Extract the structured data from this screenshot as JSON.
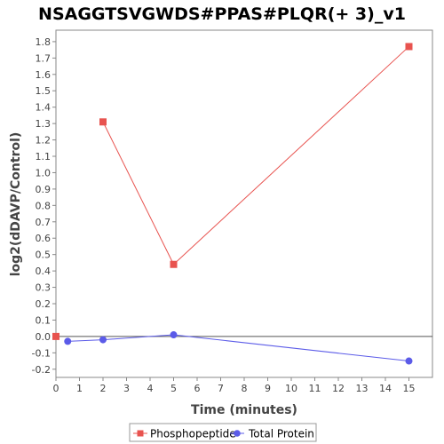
{
  "chart_data": {
    "type": "line",
    "title": "NSAGGTSVGWDS#PPAS#PLQR(+ 3)_v1",
    "xlabel": "Time (minutes)",
    "ylabel": "log2(dDAVP/Control)",
    "xlim": [
      0,
      16
    ],
    "ylim": [
      -0.25,
      1.87
    ],
    "xticks": [
      0,
      1,
      2,
      3,
      4,
      5,
      6,
      7,
      8,
      9,
      10,
      11,
      12,
      13,
      14,
      15
    ],
    "yticks": [
      -0.2,
      -0.1,
      0.0,
      0.1,
      0.2,
      0.3,
      0.4,
      0.5,
      0.6,
      0.7,
      0.8,
      0.9,
      1.0,
      1.1,
      1.2,
      1.3,
      1.4,
      1.5,
      1.6,
      1.7,
      1.8
    ],
    "grid": false,
    "zero_line": true,
    "legend_position": "bottom",
    "series": [
      {
        "name": "Phosphopeptide",
        "color": "#e8534f",
        "marker": "square",
        "points": [
          {
            "x": 0,
            "y": 0.0
          },
          {
            "x": 2,
            "y": 1.31,
            "connect": false
          },
          {
            "x": 5,
            "y": 0.44
          },
          {
            "x": 15,
            "y": 1.77
          }
        ]
      },
      {
        "name": "Total Protein",
        "color": "#5b5be8",
        "marker": "circle",
        "points": [
          {
            "x": 0.5,
            "y": -0.03
          },
          {
            "x": 2,
            "y": -0.02
          },
          {
            "x": 5,
            "y": 0.01
          },
          {
            "x": 15,
            "y": -0.15
          }
        ]
      }
    ]
  }
}
